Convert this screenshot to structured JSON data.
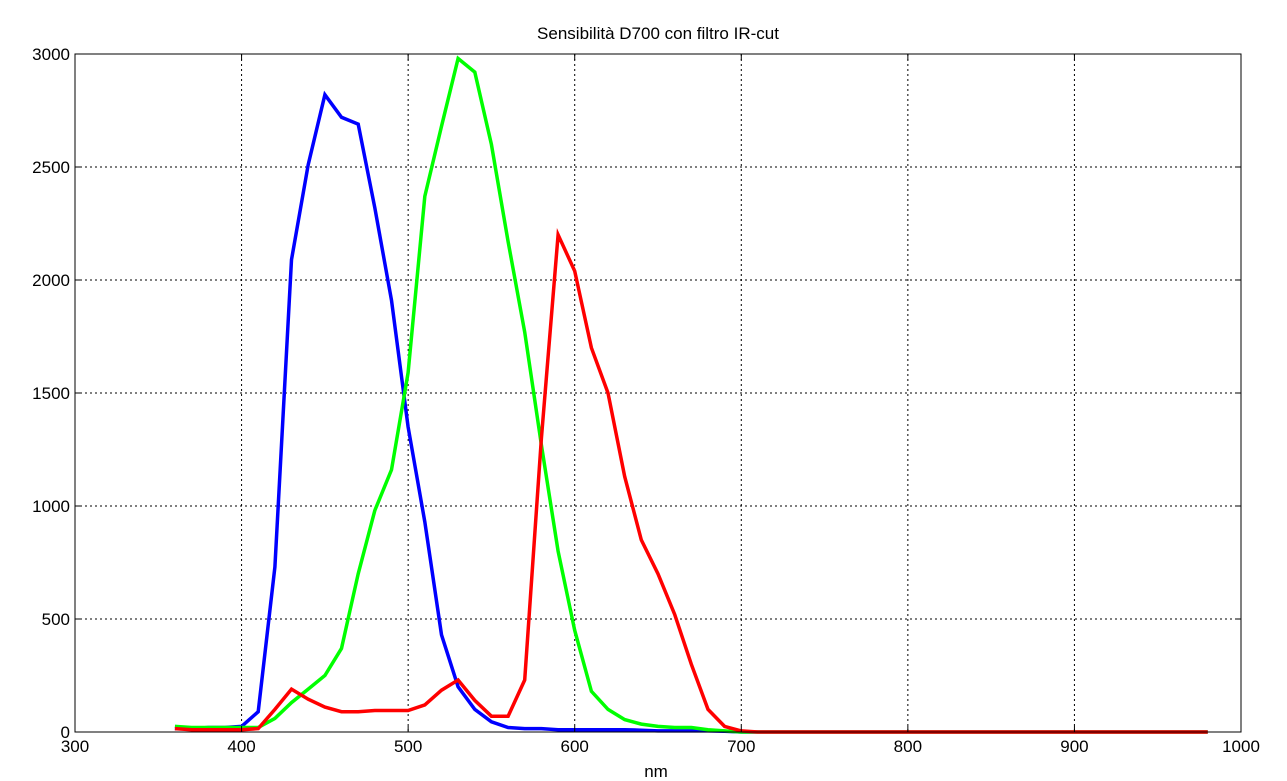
{
  "chart_data": {
    "type": "line",
    "title": "Sensibilità D700 con filtro IR-cut",
    "xlabel": "nm",
    "ylabel": "",
    "xlim": [
      300,
      1000
    ],
    "ylim": [
      0,
      3000
    ],
    "xticks": [
      300,
      400,
      500,
      600,
      700,
      800,
      900,
      1000
    ],
    "yticks": [
      0,
      500,
      1000,
      1500,
      2000,
      2500,
      3000
    ],
    "grid": true,
    "series": [
      {
        "color": "#0000ff",
        "x": [
          360,
          370,
          380,
          390,
          400,
          410,
          420,
          430,
          440,
          450,
          460,
          470,
          480,
          490,
          500,
          510,
          520,
          530,
          540,
          550,
          560,
          570,
          580,
          590,
          600,
          610,
          620,
          630,
          640,
          650,
          660,
          670,
          680,
          690,
          700,
          980
        ],
        "y": [
          15,
          15,
          20,
          20,
          25,
          90,
          730,
          2090,
          2510,
          2820,
          2720,
          2690,
          2320,
          1910,
          1350,
          930,
          430,
          200,
          100,
          45,
          20,
          15,
          15,
          10,
          10,
          10,
          10,
          10,
          8,
          5,
          5,
          5,
          5,
          3,
          0,
          0
        ]
      },
      {
        "color": "#00ff00",
        "x": [
          360,
          370,
          380,
          390,
          400,
          410,
          420,
          430,
          440,
          450,
          460,
          470,
          480,
          490,
          500,
          510,
          520,
          530,
          540,
          550,
          560,
          570,
          580,
          590,
          600,
          610,
          620,
          630,
          640,
          650,
          660,
          670,
          680,
          690,
          700,
          980
        ],
        "y": [
          25,
          20,
          20,
          20,
          20,
          20,
          60,
          130,
          190,
          250,
          370,
          700,
          980,
          1160,
          1590,
          2370,
          2680,
          2980,
          2920,
          2600,
          2170,
          1770,
          1270,
          800,
          450,
          180,
          100,
          55,
          35,
          25,
          20,
          20,
          10,
          5,
          0,
          0
        ]
      },
      {
        "color": "#ff0000",
        "x": [
          360,
          370,
          380,
          390,
          400,
          410,
          420,
          430,
          440,
          450,
          460,
          470,
          480,
          490,
          500,
          510,
          520,
          530,
          540,
          550,
          560,
          570,
          580,
          590,
          600,
          610,
          620,
          630,
          640,
          650,
          660,
          670,
          680,
          690,
          700,
          710,
          980
        ],
        "y": [
          15,
          10,
          10,
          10,
          10,
          15,
          100,
          190,
          145,
          110,
          90,
          90,
          95,
          95,
          95,
          120,
          185,
          230,
          140,
          70,
          70,
          230,
          1300,
          2200,
          2040,
          1700,
          1500,
          1130,
          850,
          700,
          520,
          300,
          100,
          25,
          5,
          0,
          0
        ]
      }
    ]
  }
}
